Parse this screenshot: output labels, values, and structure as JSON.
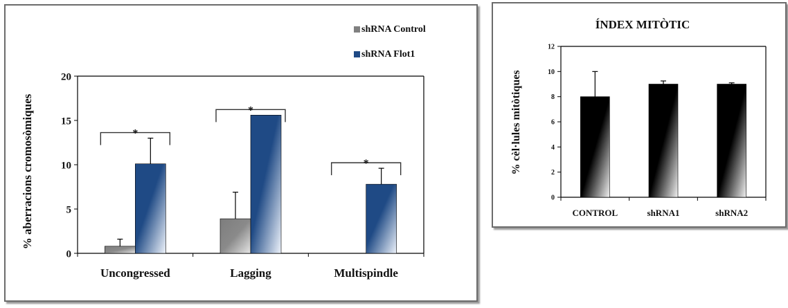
{
  "chart_data": [
    {
      "type": "bar",
      "title": "",
      "xlabel": "",
      "ylabel": "% aberracions cromosòmiques",
      "ylim": [
        0,
        20
      ],
      "yticks": [
        "0",
        "5",
        "10",
        "15",
        "20"
      ],
      "categories": [
        "Uncongressed",
        "Lagging",
        "Multispindle"
      ],
      "series": [
        {
          "name": "shRNA Control",
          "color": "#808080",
          "values": [
            0.8,
            3.9,
            0
          ],
          "errors": [
            0.8,
            3.0,
            0
          ]
        },
        {
          "name": "shRNA Flot1",
          "color": "#1f4a85",
          "values": [
            10.1,
            15.6,
            7.8
          ],
          "errors": [
            2.9,
            0,
            1.8
          ]
        }
      ],
      "significance_marker": "*",
      "legend_position": "top-right",
      "grid": false
    },
    {
      "type": "bar",
      "title": "ÍNDEX MITÒTIC",
      "xlabel": "",
      "ylabel": "% cèl·lules mitòtiques",
      "ylim": [
        0,
        12
      ],
      "yticks": [
        "0",
        "2",
        "4",
        "6",
        "8",
        "10",
        "12"
      ],
      "categories": [
        "CONTROL",
        "shRNA1",
        "shRNA2"
      ],
      "series": [
        {
          "name": "",
          "color": "#000000",
          "values": [
            8.0,
            9.0,
            9.0
          ],
          "errors": [
            2.0,
            0.25,
            0.1
          ]
        }
      ],
      "legend_position": "none",
      "grid": false
    }
  ]
}
